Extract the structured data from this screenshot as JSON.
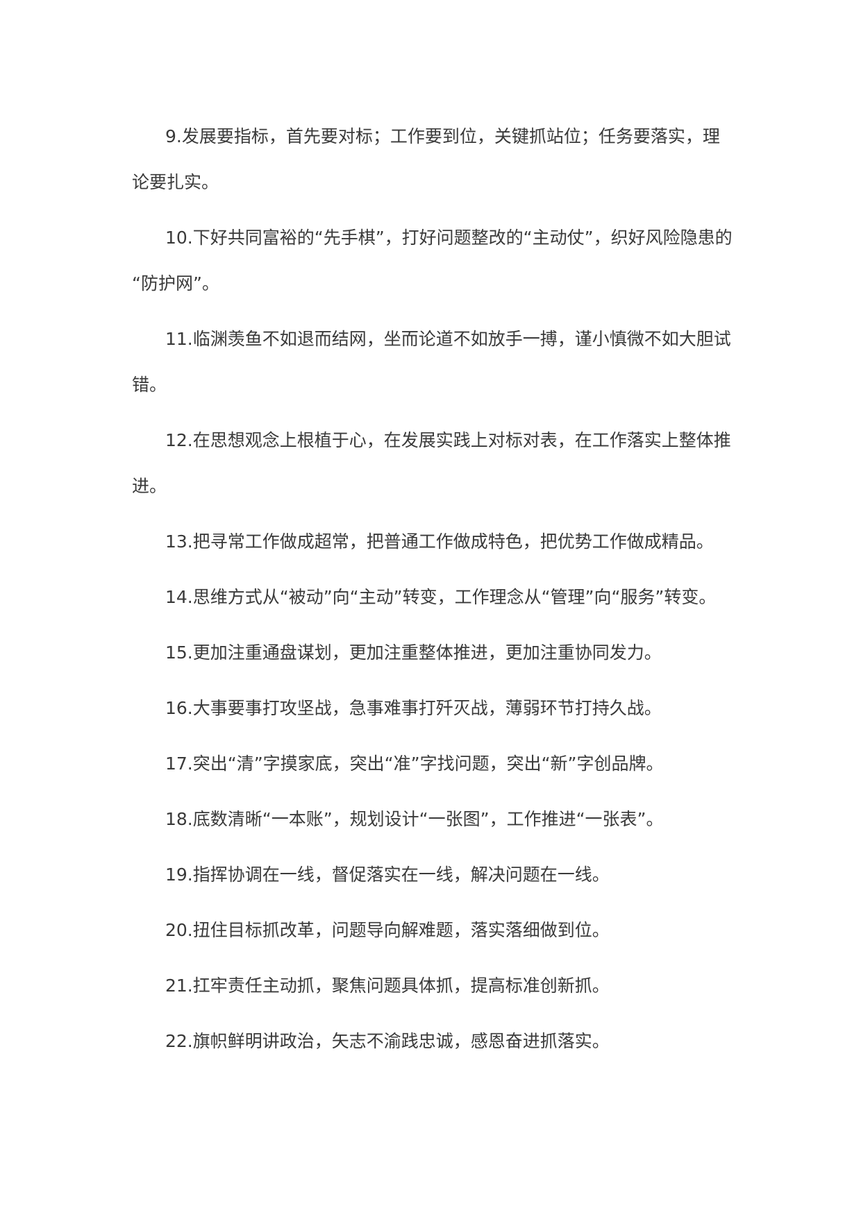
{
  "document": {
    "paragraphs": [
      {
        "lines": [
          "9.发展要指标，首先要对标；工作要到位，关键抓站位；任务要落实，理",
          "论要扎实。"
        ]
      },
      {
        "lines": [
          "10.下好共同富裕的“先手棋”，打好问题整改的“主动仗”，织好风险隐患的",
          "“防护网”。"
        ]
      },
      {
        "lines": [
          "11.临渊羡鱼不如退而结网，坐而论道不如放手一搏，谨小慎微不如大胆试",
          "错。"
        ]
      },
      {
        "lines": [
          "12.在思想观念上根植于心，在发展实践上对标对表，在工作落实上整体推",
          "进。"
        ]
      },
      {
        "lines": [
          "13.把寻常工作做成超常，把普通工作做成特色，把优势工作做成精品。"
        ]
      },
      {
        "lines": [
          "14.思维方式从“被动”向“主动”转变，工作理念从“管理”向“服务”转变。"
        ]
      },
      {
        "lines": [
          "15.更加注重通盘谋划，更加注重整体推进，更加注重协同发力。"
        ]
      },
      {
        "lines": [
          "16.大事要事打攻坚战，急事难事打歼灭战，薄弱环节打持久战。"
        ]
      },
      {
        "lines": [
          "17.突出“清”字摸家底，突出“准”字找问题，突出“新”字创品牌。"
        ]
      },
      {
        "lines": [
          "18.底数清晰“一本账”，规划设计“一张图”，工作推进“一张表”。"
        ]
      },
      {
        "lines": [
          "19.指挥协调在一线，督促落实在一线，解决问题在一线。"
        ]
      },
      {
        "lines": [
          "20.扭住目标抓改革，问题导向解难题，落实落细做到位。"
        ]
      },
      {
        "lines": [
          "21.扛牢责任主动抓，聚焦问题具体抓，提高标准创新抓。"
        ]
      },
      {
        "lines": [
          "22.旗帜鲜明讲政治，矢志不渝践忠诚，感恩奋进抓落实。"
        ]
      }
    ]
  }
}
